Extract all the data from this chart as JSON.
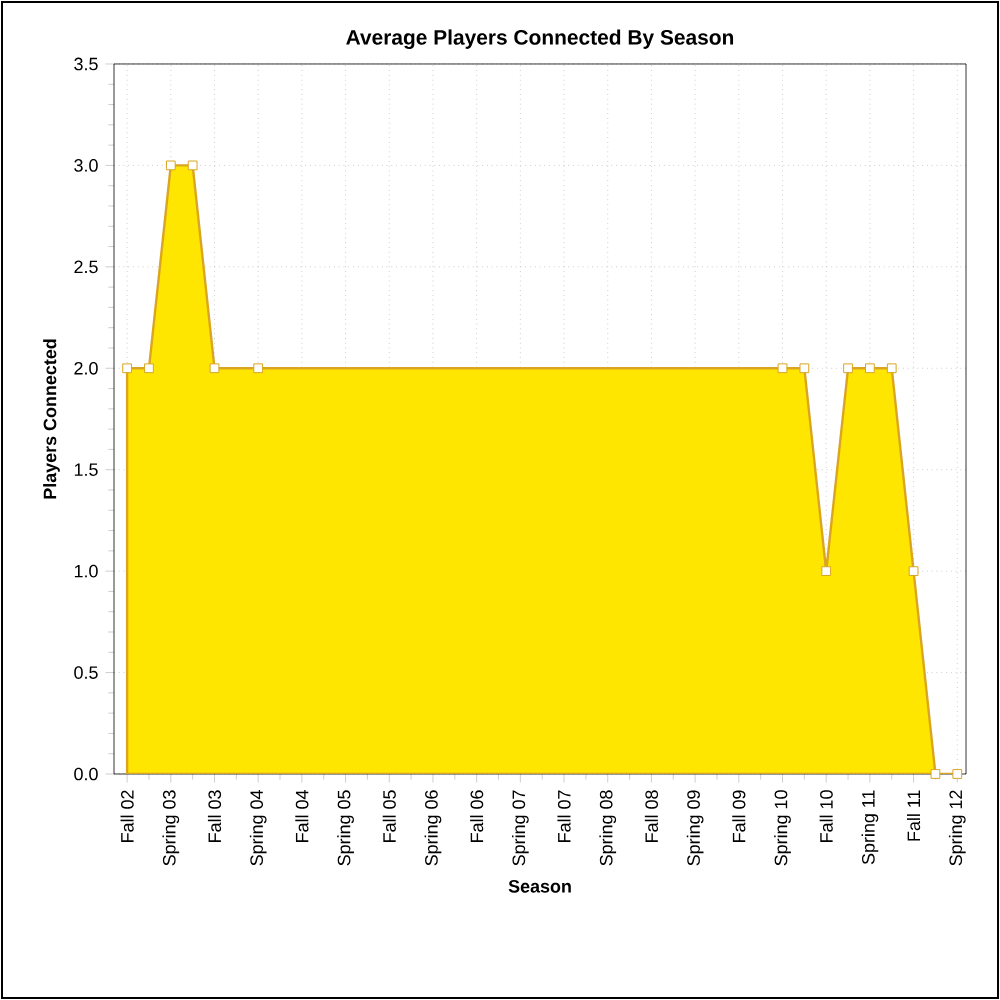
{
  "chart_data": {
    "type": "area",
    "title": "Average Players Connected By Season",
    "xlabel": "Season",
    "ylabel": "Players Connected",
    "categories": [
      "Fall 02",
      null,
      "Spring 03",
      null,
      "Fall 03",
      null,
      "Spring 04",
      null,
      "Fall 04",
      null,
      "Spring 05",
      null,
      "Fall 05",
      null,
      "Spring 06",
      null,
      "Fall 06",
      null,
      "Spring 07",
      null,
      "Fall 07",
      null,
      "Spring 08",
      null,
      "Fall 08",
      null,
      "Spring 09",
      null,
      "Fall 09",
      null,
      "Spring 10",
      null,
      "Fall 10",
      null,
      "Spring 11",
      null,
      "Fall 11",
      null,
      "Spring 12"
    ],
    "series": [
      {
        "color": "#ffe600",
        "values": [
          2,
          2,
          3,
          3,
          2,
          null,
          2,
          null,
          null,
          null,
          null,
          null,
          null,
          null,
          null,
          null,
          null,
          null,
          null,
          null,
          null,
          null,
          null,
          null,
          null,
          null,
          null,
          null,
          null,
          null,
          2,
          2,
          1,
          2,
          2,
          2,
          1,
          0,
          0
        ]
      }
    ],
    "ylim": [
      0,
      3.5
    ],
    "yticks": [
      {
        "value": 0,
        "label": "0.0"
      },
      {
        "value": 0.5,
        "label": "0.5"
      },
      {
        "value": 1,
        "label": "1.0"
      },
      {
        "value": 1.5,
        "label": "1.5"
      },
      {
        "value": 2,
        "label": "2.0"
      },
      {
        "value": 2.5,
        "label": "2.5"
      },
      {
        "value": 3,
        "label": "3.0"
      },
      {
        "value": 3.5,
        "label": "3.5"
      }
    ],
    "grid": true,
    "marker": "square",
    "line_style": "solid"
  }
}
